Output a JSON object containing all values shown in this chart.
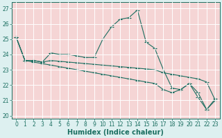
{
  "title": "",
  "xlabel": "Humidex (Indice chaleur)",
  "xlim": [
    -0.5,
    23.5
  ],
  "ylim": [
    19.8,
    27.4
  ],
  "yticks": [
    20,
    21,
    22,
    23,
    24,
    25,
    26,
    27
  ],
  "xticks": [
    0,
    1,
    2,
    3,
    4,
    5,
    6,
    7,
    8,
    9,
    10,
    11,
    12,
    13,
    14,
    15,
    16,
    17,
    18,
    19,
    20,
    21,
    22,
    23
  ],
  "bg_color": "#ddf0f0",
  "plot_bg_color": "#f5d5d5",
  "line_color": "#1a6e60",
  "grid_color": "#ffffff",
  "series1": [
    25.1,
    23.6,
    23.6,
    23.5,
    24.1,
    24.0,
    24.0,
    23.9,
    23.8,
    23.8,
    25.0,
    25.8,
    26.3,
    26.4,
    26.9,
    24.8,
    24.4,
    23.0,
    21.8,
    21.7,
    22.1,
    21.2,
    20.4,
    21.1
  ],
  "series2": [
    25.1,
    23.6,
    23.6,
    23.5,
    23.6,
    23.55,
    23.5,
    23.45,
    23.4,
    23.35,
    23.3,
    23.25,
    23.2,
    23.15,
    23.1,
    23.05,
    23.0,
    22.8,
    22.7,
    22.6,
    22.5,
    22.4,
    22.2,
    21.0
  ],
  "series3": [
    25.1,
    23.6,
    23.5,
    23.4,
    23.3,
    23.2,
    23.1,
    23.0,
    22.9,
    22.8,
    22.7,
    22.6,
    22.5,
    22.4,
    22.3,
    22.2,
    22.1,
    21.7,
    21.5,
    21.7,
    22.1,
    21.5,
    20.4,
    21.0
  ],
  "marker": "+",
  "markersize": 4.0,
  "linewidth": 0.8,
  "tick_fontsize": 5.5,
  "xlabel_fontsize": 7.0
}
